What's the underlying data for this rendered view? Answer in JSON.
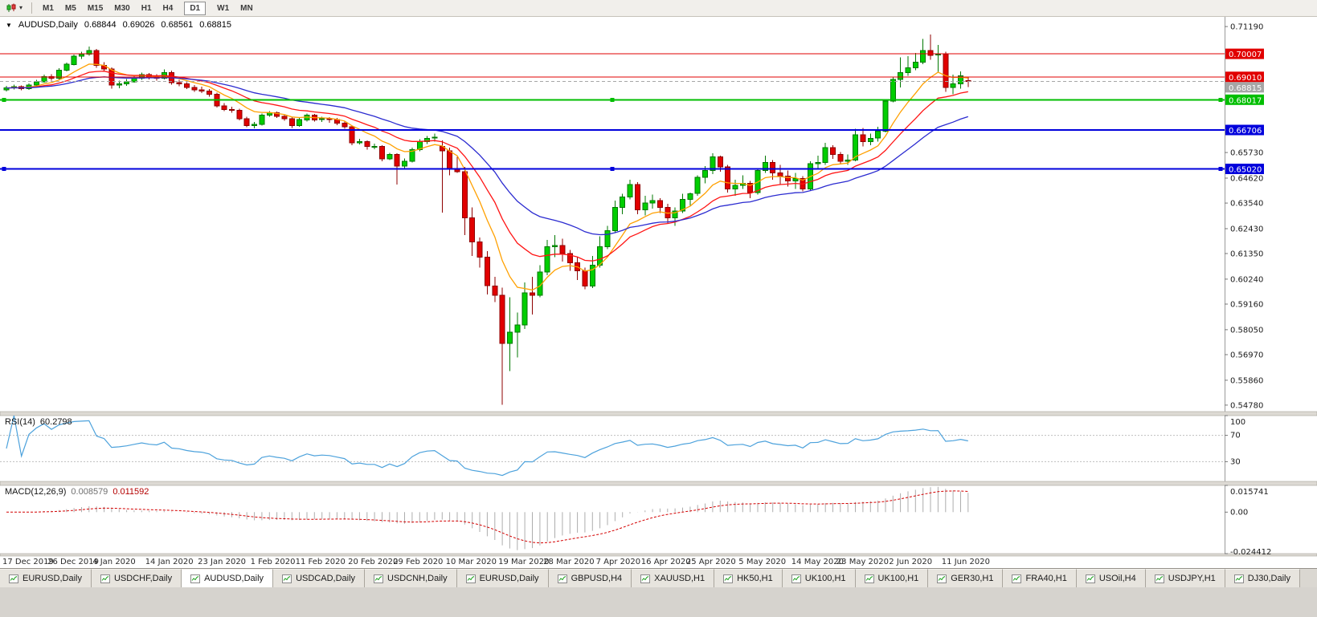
{
  "toolbar": {
    "chart_type_caret": "▾",
    "timeframes": [
      "M1",
      "M5",
      "M15",
      "M30",
      "H1",
      "H4",
      "D1",
      "W1",
      "MN"
    ],
    "active_timeframe": "D1"
  },
  "chart": {
    "collapse_icon": "▼",
    "title": "AUDUSD,Daily",
    "open": "0.68844",
    "high": "0.69026",
    "low": "0.68561",
    "close": "0.68815"
  },
  "indicators": {
    "rsi_label": "RSI(14)",
    "rsi_value": "60.2798",
    "rsi_axis_labels": [
      "100",
      "70",
      "30"
    ],
    "macd_label": "MACD(12,26,9)",
    "macd_value_main": "0.008579",
    "macd_value_signal": "0.011592",
    "macd_axis_labels": [
      "0.015741",
      "0.00",
      "-0.024412"
    ]
  },
  "price_axis": {
    "labels": [
      "0.71190",
      "0.65730",
      "0.64620",
      "0.63540",
      "0.62430",
      "0.61350",
      "0.60240",
      "0.59160",
      "0.58050",
      "0.56970",
      "0.55860",
      "0.54780"
    ]
  },
  "tabs": {
    "active_index": 2,
    "items": [
      "EURUSD,Daily",
      "USDCHF,Daily",
      "AUDUSD,Daily",
      "USDCAD,Daily",
      "USDCNH,Daily",
      "EURUSD,Daily",
      "GBPUSD,H4",
      "XAUUSD,H1",
      "HK50,H1",
      "UK100,H1",
      "UK100,H1",
      "GER30,H1",
      "FRA40,H1",
      "USOil,H4",
      "USDJPY,H1",
      "DJ30,Daily"
    ],
    "active_tab": "AUDUSD,Daily"
  },
  "chart_data": {
    "type": "candlestick",
    "title": "AUDUSD,Daily",
    "ylim": [
      0.545,
      0.7161
    ],
    "colors": {
      "up": "#00CE00",
      "up_border": "#017801",
      "down": "#E10000",
      "down_border": "#8F0000",
      "background": "#FFFFFF"
    },
    "levels": [
      {
        "price": 0.70007,
        "label": "0.70007",
        "color": "#E10000",
        "width": 1,
        "selected": false
      },
      {
        "price": 0.6901,
        "label": "0.69010",
        "color": "#E10000",
        "width": 1,
        "selected": false
      },
      {
        "price": 0.68815,
        "label": "0.68815",
        "color": "#A6A6A6",
        "width": 1,
        "style": "dash",
        "selected": false
      },
      {
        "price": 0.68017,
        "label": "0.68017",
        "color": "#00BE00",
        "width": 2,
        "selected": true
      },
      {
        "price": 0.66706,
        "label": "0.66706",
        "color": "#0000DC",
        "width": 2,
        "selected": false
      },
      {
        "price": 0.6502,
        "label": "0.65020",
        "color": "#0000DC",
        "width": 2,
        "selected": true
      }
    ],
    "moving_averages": [
      {
        "name": "ma-fast",
        "period": 8,
        "color": "#FFA000"
      },
      {
        "name": "ma-medium",
        "period": 16,
        "color": "#FF1414"
      },
      {
        "name": "ma-slow",
        "period": 30,
        "color": "#2B2BD0"
      }
    ],
    "rsi": {
      "period": 14,
      "color": "#4DA2DC",
      "levels": [
        70,
        30
      ]
    },
    "macd": {
      "fast": 12,
      "slow": 26,
      "signal": 9,
      "range": [
        -0.024412,
        0.015741
      ],
      "histogram_color": "#ADADAD",
      "signal_color": "#D40000"
    },
    "x_labels": [
      {
        "text": "17 Dec 2019",
        "bar": 0
      },
      {
        "text": "26 Dec 2019",
        "bar": 6
      },
      {
        "text": "4 Jan 2020",
        "bar": 12
      },
      {
        "text": "14 Jan 2020",
        "bar": 19
      },
      {
        "text": "23 Jan 2020",
        "bar": 26
      },
      {
        "text": "1 Feb 2020",
        "bar": 33
      },
      {
        "text": "11 Feb 2020",
        "bar": 39
      },
      {
        "text": "20 Feb 2020",
        "bar": 46
      },
      {
        "text": "29 Feb 2020",
        "bar": 52
      },
      {
        "text": "10 Mar 2020",
        "bar": 59
      },
      {
        "text": "19 Mar 2020",
        "bar": 66
      },
      {
        "text": "28 Mar 2020",
        "bar": 72
      },
      {
        "text": "7 Apr 2020",
        "bar": 79
      },
      {
        "text": "16 Apr 2020",
        "bar": 85
      },
      {
        "text": "25 Apr 2020",
        "bar": 91
      },
      {
        "text": "5 May 2020",
        "bar": 98
      },
      {
        "text": "14 May 2020",
        "bar": 105
      },
      {
        "text": "23 May 2020",
        "bar": 111
      },
      {
        "text": "2 Jun 2020",
        "bar": 118
      },
      {
        "text": "11 Jun 2020",
        "bar": 125
      }
    ],
    "candles": [
      [
        0.6845,
        0.6862,
        0.6838,
        0.6853
      ],
      [
        0.6853,
        0.6868,
        0.6846,
        0.6858
      ],
      [
        0.6858,
        0.6864,
        0.6842,
        0.685
      ],
      [
        0.685,
        0.6872,
        0.6845,
        0.6865
      ],
      [
        0.6865,
        0.6888,
        0.6858,
        0.688
      ],
      [
        0.688,
        0.691,
        0.6875,
        0.6902
      ],
      [
        0.6902,
        0.6912,
        0.6885,
        0.6895
      ],
      [
        0.6895,
        0.6938,
        0.689,
        0.693
      ],
      [
        0.693,
        0.6962,
        0.6925,
        0.6955
      ],
      [
        0.6955,
        0.6998,
        0.695,
        0.699
      ],
      [
        0.699,
        0.701,
        0.6978,
        0.7
      ],
      [
        0.7,
        0.7032,
        0.6993,
        0.7015
      ],
      [
        0.7015,
        0.7022,
        0.694,
        0.695
      ],
      [
        0.695,
        0.6965,
        0.6925,
        0.6935
      ],
      [
        0.6935,
        0.6942,
        0.685,
        0.6865
      ],
      [
        0.6865,
        0.6885,
        0.6852,
        0.687
      ],
      [
        0.687,
        0.6892,
        0.6862,
        0.688
      ],
      [
        0.688,
        0.6905,
        0.6875,
        0.6895
      ],
      [
        0.6895,
        0.692,
        0.6888,
        0.691
      ],
      [
        0.691,
        0.6918,
        0.689,
        0.69
      ],
      [
        0.69,
        0.6912,
        0.6885,
        0.6895
      ],
      [
        0.6895,
        0.6933,
        0.689,
        0.692
      ],
      [
        0.692,
        0.6928,
        0.6868,
        0.6875
      ],
      [
        0.6875,
        0.6888,
        0.686,
        0.687
      ],
      [
        0.687,
        0.6878,
        0.6848,
        0.6855
      ],
      [
        0.6855,
        0.6865,
        0.6835,
        0.6845
      ],
      [
        0.6845,
        0.6858,
        0.683,
        0.684
      ],
      [
        0.684,
        0.6848,
        0.6815,
        0.6825
      ],
      [
        0.6825,
        0.6832,
        0.6768,
        0.6775
      ],
      [
        0.6775,
        0.6788,
        0.6752,
        0.676
      ],
      [
        0.676,
        0.6772,
        0.6745,
        0.6755
      ],
      [
        0.6755,
        0.6762,
        0.6712,
        0.672
      ],
      [
        0.672,
        0.6728,
        0.6682,
        0.669
      ],
      [
        0.669,
        0.6705,
        0.6678,
        0.6695
      ],
      [
        0.6695,
        0.6742,
        0.669,
        0.6735
      ],
      [
        0.6735,
        0.6752,
        0.6728,
        0.6745
      ],
      [
        0.6745,
        0.675,
        0.6722,
        0.673
      ],
      [
        0.673,
        0.6738,
        0.671,
        0.672
      ],
      [
        0.672,
        0.6728,
        0.668,
        0.669
      ],
      [
        0.669,
        0.6722,
        0.6685,
        0.6715
      ],
      [
        0.6715,
        0.6742,
        0.6708,
        0.6735
      ],
      [
        0.6735,
        0.674,
        0.6708,
        0.6715
      ],
      [
        0.6715,
        0.6728,
        0.6705,
        0.672
      ],
      [
        0.672,
        0.6726,
        0.6702,
        0.6715
      ],
      [
        0.6715,
        0.6722,
        0.6692,
        0.67
      ],
      [
        0.67,
        0.6708,
        0.6675,
        0.6685
      ],
      [
        0.6685,
        0.669,
        0.6605,
        0.6615
      ],
      [
        0.6615,
        0.6632,
        0.6608,
        0.662
      ],
      [
        0.662,
        0.6625,
        0.6585,
        0.66
      ],
      [
        0.66,
        0.6612,
        0.6588,
        0.66
      ],
      [
        0.66,
        0.6605,
        0.6535,
        0.6545
      ],
      [
        0.6545,
        0.6572,
        0.654,
        0.6565
      ],
      [
        0.6565,
        0.657,
        0.6435,
        0.6515
      ],
      [
        0.6515,
        0.6548,
        0.6505,
        0.6535
      ],
      [
        0.6535,
        0.6595,
        0.653,
        0.6585
      ],
      [
        0.6585,
        0.663,
        0.6578,
        0.662
      ],
      [
        0.662,
        0.6645,
        0.661,
        0.6635
      ],
      [
        0.6635,
        0.6655,
        0.662,
        0.664
      ],
      [
        0.66,
        0.6625,
        0.6313,
        0.658
      ],
      [
        0.658,
        0.6595,
        0.6475,
        0.65
      ],
      [
        0.65,
        0.6555,
        0.6485,
        0.649
      ],
      [
        0.649,
        0.651,
        0.6215,
        0.629
      ],
      [
        0.629,
        0.6335,
        0.6125,
        0.6185
      ],
      [
        0.6185,
        0.6205,
        0.6075,
        0.612
      ],
      [
        0.612,
        0.6145,
        0.5958,
        0.5995
      ],
      [
        0.5995,
        0.6035,
        0.5925,
        0.5955
      ],
      [
        0.5955,
        0.5988,
        0.548,
        0.5745
      ],
      [
        0.5745,
        0.5945,
        0.5625,
        0.5795
      ],
      [
        0.5795,
        0.588,
        0.5685,
        0.5825
      ],
      [
        0.5825,
        0.601,
        0.5808,
        0.5965
      ],
      [
        0.5965,
        0.6035,
        0.587,
        0.5955
      ],
      [
        0.5955,
        0.6085,
        0.5945,
        0.6055
      ],
      [
        0.6055,
        0.6195,
        0.6042,
        0.6165
      ],
      [
        0.6165,
        0.6215,
        0.612,
        0.617
      ],
      [
        0.617,
        0.62,
        0.61,
        0.6135
      ],
      [
        0.6135,
        0.615,
        0.606,
        0.6095
      ],
      [
        0.6095,
        0.612,
        0.602,
        0.606
      ],
      [
        0.606,
        0.6075,
        0.598,
        0.5995
      ],
      [
        0.5995,
        0.6125,
        0.5985,
        0.6085
      ],
      [
        0.6085,
        0.621,
        0.6075,
        0.6165
      ],
      [
        0.6165,
        0.6255,
        0.6155,
        0.6235
      ],
      [
        0.6235,
        0.6365,
        0.6225,
        0.6335
      ],
      [
        0.6335,
        0.6395,
        0.6305,
        0.638
      ],
      [
        0.638,
        0.6455,
        0.637,
        0.6435
      ],
      [
        0.6435,
        0.6445,
        0.6305,
        0.6325
      ],
      [
        0.6325,
        0.6385,
        0.63,
        0.6355
      ],
      [
        0.6355,
        0.639,
        0.633,
        0.6365
      ],
      [
        0.6365,
        0.6375,
        0.631,
        0.6335
      ],
      [
        0.6335,
        0.635,
        0.6265,
        0.629
      ],
      [
        0.629,
        0.6335,
        0.6255,
        0.632
      ],
      [
        0.632,
        0.6395,
        0.631,
        0.637
      ],
      [
        0.637,
        0.64,
        0.634,
        0.6395
      ],
      [
        0.6395,
        0.6475,
        0.6385,
        0.6465
      ],
      [
        0.6465,
        0.6515,
        0.644,
        0.6495
      ],
      [
        0.6495,
        0.657,
        0.648,
        0.6555
      ],
      [
        0.6555,
        0.656,
        0.649,
        0.651
      ],
      [
        0.651,
        0.652,
        0.64,
        0.6415
      ],
      [
        0.6415,
        0.6455,
        0.6385,
        0.643
      ],
      [
        0.643,
        0.6475,
        0.6415,
        0.644
      ],
      [
        0.644,
        0.645,
        0.6375,
        0.64
      ],
      [
        0.64,
        0.6505,
        0.639,
        0.6495
      ],
      [
        0.6495,
        0.656,
        0.6485,
        0.653
      ],
      [
        0.653,
        0.654,
        0.6455,
        0.6485
      ],
      [
        0.6485,
        0.652,
        0.6435,
        0.647
      ],
      [
        0.647,
        0.6495,
        0.6425,
        0.645
      ],
      [
        0.645,
        0.6485,
        0.6415,
        0.646
      ],
      [
        0.646,
        0.647,
        0.6405,
        0.6415
      ],
      [
        0.6415,
        0.6535,
        0.641,
        0.6525
      ],
      [
        0.6525,
        0.656,
        0.6505,
        0.653
      ],
      [
        0.653,
        0.6615,
        0.652,
        0.6595
      ],
      [
        0.6595,
        0.6605,
        0.6545,
        0.6565
      ],
      [
        0.6565,
        0.6575,
        0.6525,
        0.6535
      ],
      [
        0.6535,
        0.6565,
        0.652,
        0.654
      ],
      [
        0.654,
        0.6675,
        0.6535,
        0.665
      ],
      [
        0.665,
        0.668,
        0.66,
        0.662
      ],
      [
        0.662,
        0.6655,
        0.6605,
        0.6635
      ],
      [
        0.6635,
        0.6685,
        0.662,
        0.6665
      ],
      [
        0.6665,
        0.6805,
        0.666,
        0.6795
      ],
      [
        0.6795,
        0.69,
        0.679,
        0.689
      ],
      [
        0.689,
        0.6985,
        0.6855,
        0.692
      ],
      [
        0.692,
        0.699,
        0.6905,
        0.694
      ],
      [
        0.694,
        0.7005,
        0.693,
        0.6965
      ],
      [
        0.6965,
        0.7065,
        0.6955,
        0.7015
      ],
      [
        0.7015,
        0.7085,
        0.6975,
        0.6995
      ],
      [
        0.6995,
        0.704,
        0.692,
        0.7
      ],
      [
        0.7,
        0.701,
        0.6835,
        0.6855
      ],
      [
        0.6855,
        0.691,
        0.6825,
        0.687
      ],
      [
        0.687,
        0.6925,
        0.685,
        0.6905
      ],
      [
        0.68844,
        0.69026,
        0.68561,
        0.68815
      ]
    ]
  }
}
